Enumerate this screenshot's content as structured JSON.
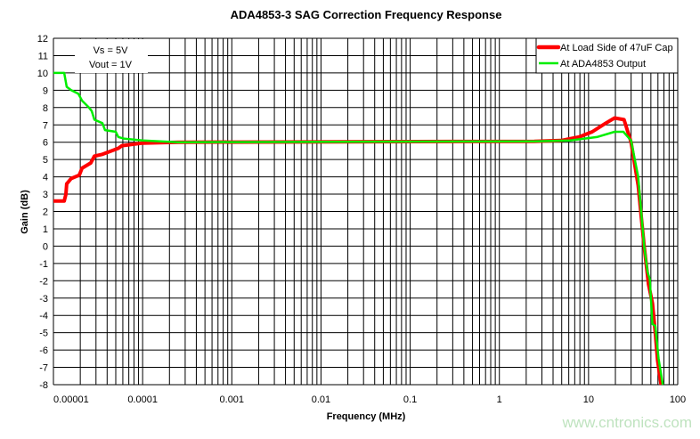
{
  "chart_data": {
    "type": "line",
    "title": "ADA4853-3 SAG Correction Frequency Response",
    "xlabel": "Frequency (MHz)",
    "ylabel": "Gain (dB)",
    "xscale": "log",
    "xlim": [
      1e-05,
      100
    ],
    "ylim": [
      -8,
      12
    ],
    "x_tick_labels": [
      "0.00001",
      "0.0001",
      "0.001",
      "0.01",
      "0.1",
      "1",
      "10",
      "100"
    ],
    "y_tick_labels": [
      "12",
      "11",
      "10",
      "9",
      "8",
      "7",
      "6",
      "5",
      "4",
      "3",
      "2",
      "1",
      "0",
      "-1",
      "-2",
      "-3",
      "-4",
      "-5",
      "-6",
      "-7",
      "-8"
    ],
    "grid": true,
    "legend_position": "top-right",
    "annotation": [
      "Vs = 5V",
      "Vout = 1V"
    ],
    "series": [
      {
        "name": "At Load Side of 47uF Cap",
        "color": "#ff0000",
        "points": [
          [
            1e-05,
            2.6
          ],
          [
            1.32e-05,
            2.6
          ],
          [
            1.38e-05,
            3.0
          ],
          [
            1.41e-05,
            3.6
          ],
          [
            1.58e-05,
            3.9
          ],
          [
            1.95e-05,
            4.1
          ],
          [
            2.09e-05,
            4.5
          ],
          [
            2.62e-05,
            4.8
          ],
          [
            2.88e-05,
            5.2
          ],
          [
            3.54e-05,
            5.3
          ],
          [
            3.97e-05,
            5.4
          ],
          [
            5.34e-05,
            5.65
          ],
          [
            5.86e-05,
            5.8
          ],
          [
            0.0001,
            5.95
          ],
          [
            0.00025,
            6.0
          ],
          [
            2.46,
            6.05
          ],
          [
            4.9,
            6.1
          ],
          [
            7.8,
            6.3
          ],
          [
            11,
            6.6
          ],
          [
            15.6,
            7.1
          ],
          [
            19.6,
            7.4
          ],
          [
            25,
            7.3
          ],
          [
            30,
            6.0
          ],
          [
            36,
            3.5
          ],
          [
            42,
            0
          ],
          [
            47,
            -2.2
          ],
          [
            52,
            -3.3
          ],
          [
            56,
            -5
          ],
          [
            59.5,
            -6.6
          ],
          [
            65,
            -8
          ]
        ]
      },
      {
        "name": "At ADA4853 Output",
        "color": "#00ee00",
        "points": [
          [
            1e-05,
            10
          ],
          [
            1.32e-05,
            10
          ],
          [
            1.41e-05,
            9.2
          ],
          [
            1.58e-05,
            9.0
          ],
          [
            1.9e-05,
            8.8
          ],
          [
            2.09e-05,
            8.4
          ],
          [
            2.5e-05,
            8.0
          ],
          [
            2.69e-05,
            7.8
          ],
          [
            2.88e-05,
            7.3
          ],
          [
            3.54e-05,
            7.1
          ],
          [
            3.79e-05,
            6.7
          ],
          [
            5e-05,
            6.6
          ],
          [
            5.34e-05,
            6.3
          ],
          [
            6.3e-05,
            6.2
          ],
          [
            0.0001,
            6.1
          ],
          [
            0.00025,
            6.0
          ],
          [
            2.46,
            6.05
          ],
          [
            6.2,
            6.1
          ],
          [
            12.4,
            6.3
          ],
          [
            19.6,
            6.6
          ],
          [
            24.6,
            6.6
          ],
          [
            30,
            6.1
          ],
          [
            36,
            4.0
          ],
          [
            42,
            0
          ],
          [
            46,
            -1.5
          ],
          [
            48.6,
            -1.9
          ],
          [
            52,
            -4.5
          ],
          [
            56,
            -4.6
          ],
          [
            61,
            -6.5
          ],
          [
            68,
            -8
          ]
        ]
      }
    ]
  },
  "watermark": "www.cntronics.com"
}
